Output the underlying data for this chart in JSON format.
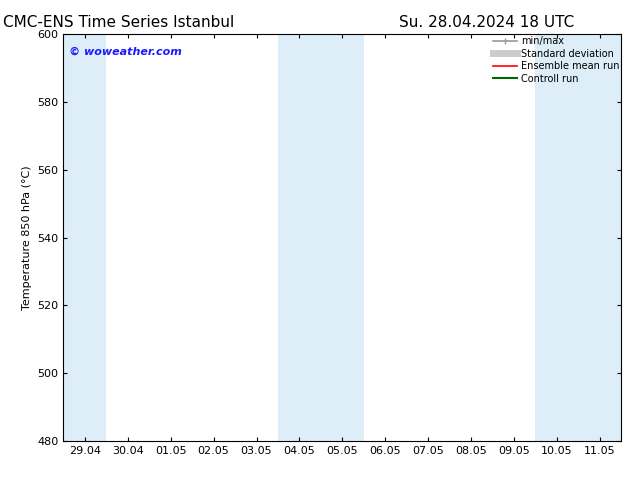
{
  "title_left": "CMC-ENS Time Series Istanbul",
  "title_right": "Su. 28.04.2024 18 UTC",
  "ylabel": "Temperature 850 hPa (°C)",
  "watermark": "© woweather.com",
  "watermark_color": "#1a1aff",
  "ylim": [
    480,
    600
  ],
  "yticks": [
    480,
    500,
    520,
    540,
    560,
    580,
    600
  ],
  "xtick_labels": [
    "29.04",
    "30.04",
    "01.05",
    "02.05",
    "03.05",
    "04.05",
    "05.05",
    "06.05",
    "07.05",
    "08.05",
    "09.05",
    "10.05",
    "11.05"
  ],
  "background_color": "#ffffff",
  "plot_bg_color": "#ffffff",
  "shaded_bands": [
    {
      "xstart": -0.5,
      "xend": 0.5,
      "color": "#ddeef8"
    },
    {
      "xstart": 4.5,
      "xend": 6.5,
      "color": "#ddeef8"
    },
    {
      "xstart": 10.5,
      "xend": 12.5,
      "color": "#ddeef8"
    }
  ],
  "legend_entries": [
    {
      "label": "min/max",
      "color": "#999999",
      "lw": 1.2
    },
    {
      "label": "Standard deviation",
      "color": "#cccccc",
      "lw": 5
    },
    {
      "label": "Ensemble mean run",
      "color": "#ff0000",
      "lw": 1.2
    },
    {
      "label": "Controll run",
      "color": "#006600",
      "lw": 1.5
    }
  ],
  "title_fontsize": 11,
  "tick_label_fontsize": 8,
  "ylabel_fontsize": 8,
  "watermark_fontsize": 8
}
